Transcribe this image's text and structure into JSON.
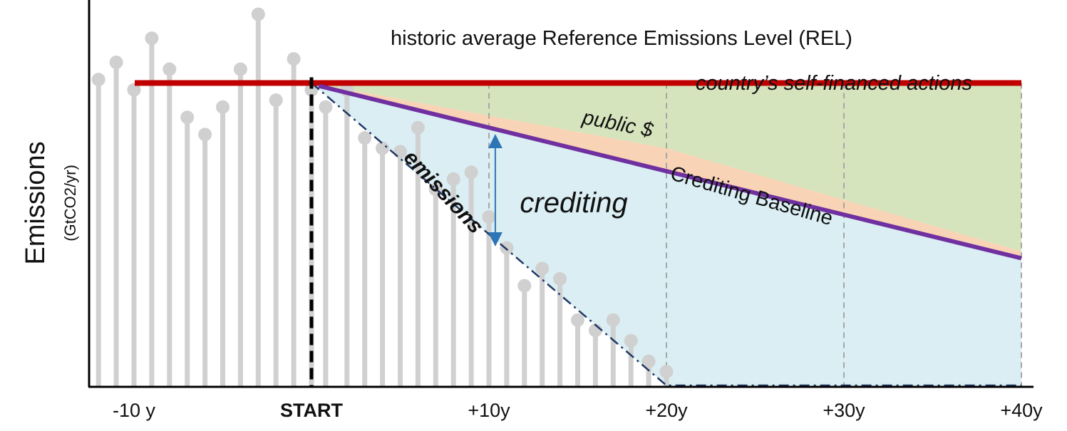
{
  "chart_data": {
    "type": "diagram",
    "title": "historic average Reference Emissions Level (REL)",
    "ylabel": "Emissions",
    "yunit": "(GtCO2/yr)",
    "x_ticks": [
      "-10 y",
      "START",
      "+10y",
      "+20y",
      "+30y",
      "+40y"
    ],
    "labels": {
      "self_financed": "country’s self-financed actions",
      "public": "public $",
      "crediting": "crediting",
      "baseline": "Crediting Baseline",
      "emissions": "emissions"
    },
    "colors": {
      "rel": "#c00000",
      "baseline": "#7030a0",
      "self_financed_fill": "#d6e4bd",
      "public_fill": "#f9d3b5",
      "crediting_fill": "#daeef3",
      "stems": "#d0d0d0",
      "emissions_line": "#1f3864",
      "arrow": "#2e75b6",
      "grid": "#a6a6a6"
    },
    "historic_series": [
      {
        "year": -12,
        "value": 0.89
      },
      {
        "year": -11,
        "value": 0.94
      },
      {
        "year": -10,
        "value": 0.86
      },
      {
        "year": -9,
        "value": 1.01
      },
      {
        "year": -8,
        "value": 0.92
      },
      {
        "year": -7,
        "value": 0.78
      },
      {
        "year": -6,
        "value": 0.73
      },
      {
        "year": -5,
        "value": 0.81
      },
      {
        "year": -4,
        "value": 0.92
      },
      {
        "year": -3,
        "value": 1.08
      },
      {
        "year": -2,
        "value": 0.83
      },
      {
        "year": -1,
        "value": 0.95
      },
      {
        "year": 0,
        "value": 0.86
      }
    ],
    "projected_series": [
      {
        "year": 0.8,
        "value": 0.81
      },
      {
        "year": 2,
        "value": 0.86
      },
      {
        "year": 3,
        "value": 0.72
      },
      {
        "year": 4,
        "value": 0.69
      },
      {
        "year": 5,
        "value": 0.68
      },
      {
        "year": 6,
        "value": 0.75
      },
      {
        "year": 7,
        "value": 0.57
      },
      {
        "year": 8,
        "value": 0.6
      },
      {
        "year": 9,
        "value": 0.62
      },
      {
        "year": 10,
        "value": 0.49
      },
      {
        "year": 11,
        "value": 0.4
      },
      {
        "year": 12,
        "value": 0.29
      },
      {
        "year": 13,
        "value": 0.34
      },
      {
        "year": 14,
        "value": 0.31
      },
      {
        "year": 15,
        "value": 0.19
      },
      {
        "year": 16,
        "value": 0.16
      },
      {
        "year": 17,
        "value": 0.19
      },
      {
        "year": 18,
        "value": 0.13
      },
      {
        "year": 19,
        "value": 0.07
      },
      {
        "year": 20,
        "value": 0.04
      }
    ],
    "rel_level": 0.88,
    "baseline": [
      {
        "year": 0,
        "value": 0.88
      },
      {
        "year": 40,
        "value": 0.37
      }
    ],
    "public_band_top": [
      {
        "year": 0,
        "value": 0.88
      },
      {
        "year": 20,
        "value": 0.69
      },
      {
        "year": 40,
        "value": 0.39
      }
    ],
    "emissions_trend": [
      {
        "year": 0,
        "value": 0.88
      },
      {
        "year": 20,
        "value": 0.0
      },
      {
        "year": 40,
        "value": 0.0
      }
    ],
    "xlim": [
      -12.5,
      41
    ],
    "ylim": [
      0,
      1.08
    ]
  }
}
